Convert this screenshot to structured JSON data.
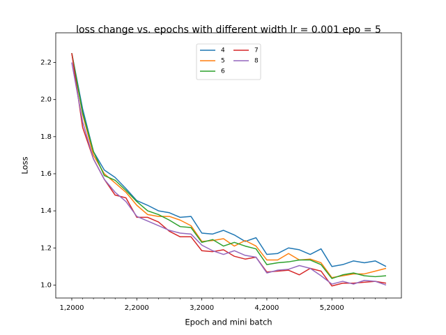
{
  "chart_data": {
    "type": "line",
    "title": "loss change vs. epochs with different width lr = 0.001 epo = 5",
    "xlabel": "Epoch and mini batch",
    "ylabel": "Loss",
    "categories": [
      "1,2000",
      null,
      null,
      null,
      null,
      null,
      "2,2000",
      null,
      null,
      null,
      null,
      null,
      "3,2000",
      null,
      null,
      null,
      null,
      null,
      "4,2000",
      null,
      null,
      null,
      null,
      null,
      "5,2000",
      null,
      null,
      null,
      null,
      null
    ],
    "series": [
      {
        "name": "4",
        "color": "#1f77b4",
        "values": [
          2.25,
          1.95,
          1.72,
          1.62,
          1.58,
          1.52,
          1.455,
          1.43,
          1.4,
          1.39,
          1.365,
          1.37,
          1.28,
          1.275,
          1.295,
          1.27,
          1.235,
          1.255,
          1.165,
          1.17,
          1.2,
          1.19,
          1.165,
          1.195,
          1.1,
          1.11,
          1.13,
          1.12,
          1.13,
          1.1
        ]
      },
      {
        "name": "5",
        "color": "#ff7f0e",
        "values": [
          2.25,
          1.92,
          1.7,
          1.6,
          1.55,
          1.5,
          1.43,
          1.38,
          1.37,
          1.37,
          1.35,
          1.32,
          1.235,
          1.24,
          1.25,
          1.21,
          1.24,
          1.21,
          1.135,
          1.135,
          1.17,
          1.135,
          1.14,
          1.12,
          1.04,
          1.05,
          1.06,
          1.06,
          1.075,
          1.09
        ]
      },
      {
        "name": "6",
        "color": "#2ca02c",
        "values": [
          2.25,
          1.93,
          1.72,
          1.59,
          1.565,
          1.51,
          1.45,
          1.4,
          1.38,
          1.35,
          1.315,
          1.31,
          1.23,
          1.245,
          1.21,
          1.23,
          1.21,
          1.195,
          1.11,
          1.12,
          1.125,
          1.135,
          1.135,
          1.11,
          1.035,
          1.055,
          1.065,
          1.05,
          1.045,
          1.05
        ]
      },
      {
        "name": "7",
        "color": "#d62728",
        "values": [
          2.25,
          1.85,
          1.68,
          1.57,
          1.485,
          1.47,
          1.365,
          1.365,
          1.34,
          1.29,
          1.26,
          1.26,
          1.185,
          1.18,
          1.19,
          1.155,
          1.14,
          1.15,
          1.07,
          1.075,
          1.08,
          1.055,
          1.09,
          1.075,
          0.995,
          1.01,
          1.01,
          1.015,
          1.02,
          1.01
        ]
      },
      {
        "name": "8",
        "color": "#9467bd",
        "values": [
          2.2,
          1.88,
          1.68,
          1.57,
          1.5,
          1.45,
          1.37,
          1.345,
          1.32,
          1.295,
          1.28,
          1.275,
          1.215,
          1.185,
          1.165,
          1.185,
          1.16,
          1.15,
          1.065,
          1.08,
          1.085,
          1.105,
          1.09,
          1.05,
          1.005,
          1.02,
          1.005,
          1.025,
          1.02,
          1.0
        ]
      }
    ],
    "ylim": [
      0.93,
      2.36
    ],
    "yticks": [
      {
        "value": 1.0,
        "label": "1.0"
      },
      {
        "value": 1.2,
        "label": "1.2"
      },
      {
        "value": 1.4,
        "label": "1.4"
      },
      {
        "value": 1.6,
        "label": "1.6"
      },
      {
        "value": 1.8,
        "label": "1.8"
      },
      {
        "value": 2.0,
        "label": "2.0"
      },
      {
        "value": 2.2,
        "label": "2.2"
      }
    ],
    "legend": "upper center",
    "grid": false
  }
}
